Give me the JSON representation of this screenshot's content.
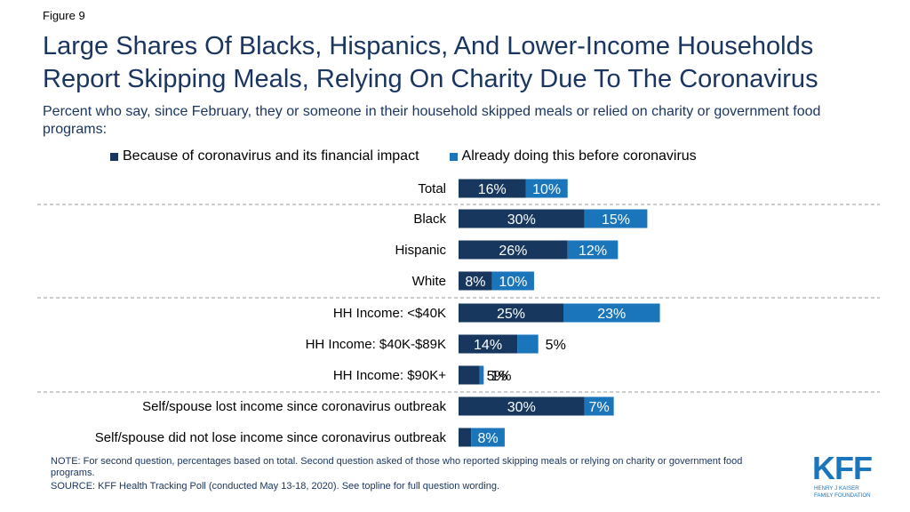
{
  "figure_label": "Figure 9",
  "title_lines": [
    "Large Shares Of Blacks, Hispanics, And Lower-Income Households",
    "Report Skipping Meals, Relying On Charity Due To The Coronavirus"
  ],
  "subtitle": "Percent who say, since February, they or someone in their household skipped meals or relied on charity or government food programs:",
  "colors": {
    "dark": "#17375e",
    "light": "#1b75bb",
    "rule": "#9a9a9a"
  },
  "chart_data": {
    "type": "bar",
    "orientation": "horizontal",
    "stacked": true,
    "categories": [
      "Total",
      "Black",
      "Hispanic",
      "White",
      "HH Income: <$40K",
      "HH Income: $40K-$89K",
      "HH Income: $90K+",
      "Self/spouse lost income since coronavirus outbreak",
      "Self/spouse did not lose income since coronavirus outbreak"
    ],
    "series": [
      {
        "name": "Because of coronavirus and its financial impact",
        "color": "#17375e",
        "values": [
          16,
          30,
          26,
          8,
          25,
          14,
          5,
          30,
          3
        ],
        "labels": [
          "16%",
          "30%",
          "26%",
          "8%",
          "25%",
          "14%",
          "5%",
          "30%",
          "3%"
        ]
      },
      {
        "name": "Already doing this before coronavirus",
        "color": "#1b75bb",
        "values": [
          10,
          15,
          12,
          10,
          23,
          5,
          1,
          7,
          8
        ],
        "labels": [
          "10%",
          "15%",
          "12%",
          "10%",
          "23%",
          "5%",
          "1%",
          "7%",
          "8%"
        ]
      }
    ],
    "group_separators_after": [
      "Total",
      "White",
      "HH Income: $90K+"
    ],
    "legend_position": "top",
    "grid": false
  },
  "notes": {
    "note": "NOTE: For second question, percentages based on total. Second question asked of those who reported skipping meals or relying on charity or government food programs.",
    "source": "SOURCE: KFF Health Tracking Poll (conducted May 13-18, 2020). See topline for full question wording."
  },
  "logo": {
    "wordmark": "KFF",
    "line1": "HENRY J KAISER",
    "line2": "FAMILY FOUNDATION",
    "color": "#1b75bb"
  }
}
